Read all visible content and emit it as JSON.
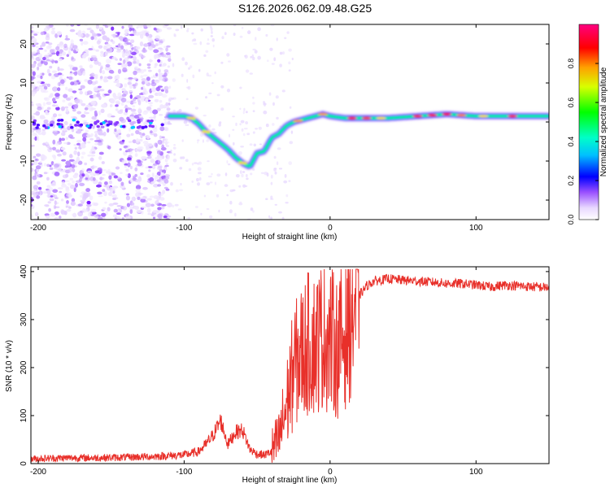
{
  "figure_title": "S126.2026.062.09.48.G25",
  "chart_data": [
    {
      "type": "heatmap",
      "title": "S126.2026.062.09.48.G25",
      "xlabel": "Height of straight line (km)",
      "ylabel": "Frequency (Hz)",
      "xlim": [
        -205,
        150
      ],
      "ylim": [
        -25,
        25
      ],
      "xticks": [
        -200,
        -100,
        0,
        100
      ],
      "yticks": [
        -20,
        -10,
        0,
        10,
        20
      ],
      "colorbar": {
        "label": "Normalized spectral amplitude",
        "range": [
          0,
          1
        ],
        "ticks": [
          0.0,
          0.2,
          0.4,
          0.6,
          0.8
        ]
      },
      "ridge": {
        "description": "frequency of peak amplitude vs height",
        "x": [
          -110,
          -100,
          -95,
          -90,
          -85,
          -80,
          -75,
          -70,
          -65,
          -60,
          -55,
          -50,
          -45,
          -40,
          -35,
          -30,
          -25,
          -20,
          -15,
          -10,
          -5,
          0,
          10,
          20,
          40,
          60,
          80,
          100,
          120,
          150
        ],
        "y": [
          1.5,
          1.5,
          1.0,
          -0.5,
          -2.5,
          -4.0,
          -5.5,
          -7.0,
          -9.0,
          -10.5,
          -11.5,
          -8.0,
          -7.5,
          -4.0,
          -3.0,
          -1.0,
          0,
          0.5,
          1.0,
          1.5,
          2.0,
          1.5,
          1.0,
          1.0,
          1.0,
          1.5,
          2.0,
          1.5,
          1.5,
          1.5
        ]
      }
    },
    {
      "type": "line",
      "xlabel": "Height of straight line (km)",
      "ylabel": "SNR (10 * v/v)",
      "xlim": [
        -205,
        150
      ],
      "ylim": [
        0,
        410
      ],
      "xticks": [
        -200,
        -100,
        0,
        100
      ],
      "yticks": [
        0,
        100,
        200,
        300,
        400
      ],
      "series": [
        {
          "name": "SNR",
          "color": "#e8302a",
          "x": [
            -205,
            -180,
            -160,
            -140,
            -120,
            -100,
            -90,
            -85,
            -80,
            -75,
            -72,
            -70,
            -65,
            -60,
            -55,
            -50,
            -45,
            -40,
            -35,
            -30,
            -25,
            -20,
            -15,
            -10,
            -5,
            0,
            5,
            10,
            15,
            20,
            25,
            30,
            40,
            50,
            60,
            70,
            80,
            90,
            100,
            110,
            120,
            130,
            140,
            150
          ],
          "y": [
            10,
            12,
            12,
            13,
            15,
            18,
            25,
            40,
            60,
            90,
            60,
            40,
            65,
            70,
            30,
            20,
            18,
            25,
            50,
            120,
            200,
            230,
            250,
            250,
            270,
            260,
            240,
            270,
            320,
            350,
            370,
            380,
            385,
            382,
            380,
            378,
            375,
            375,
            372,
            368,
            372,
            370,
            368,
            367
          ]
        }
      ]
    }
  ]
}
